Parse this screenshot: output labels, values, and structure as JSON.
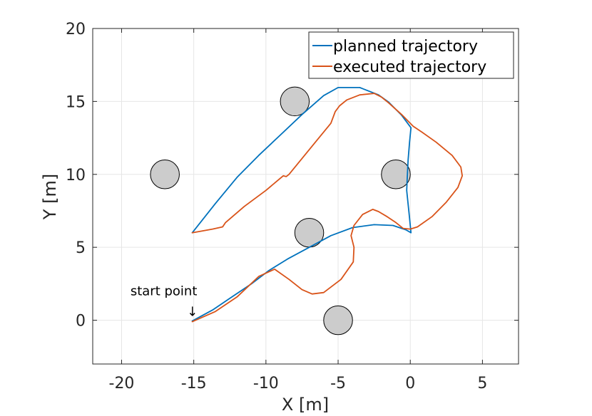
{
  "chart_data": {
    "type": "line",
    "title": "",
    "xlabel": "X [m]",
    "ylabel": "Y [m]",
    "xlim": [
      -22,
      7.5
    ],
    "ylim": [
      -3,
      20
    ],
    "xticks": [
      -20,
      -15,
      -10,
      -5,
      0,
      5
    ],
    "yticks": [
      0,
      5,
      10,
      15,
      20
    ],
    "xtick_labels": [
      "-20",
      "-15",
      "-10",
      "-5",
      "0",
      "5"
    ],
    "ytick_labels": [
      "0",
      "5",
      "10",
      "15",
      "20"
    ],
    "grid": true,
    "legend_position": "top-right",
    "colors": {
      "planned": "#0072BD",
      "executed": "#D95319",
      "obstacle_fill": "#cccccc",
      "obstacle_edge": "#000000"
    },
    "series": [
      {
        "name": "planned trajectory",
        "x": [
          -15.1,
          -13.5,
          -12,
          -10.5,
          -9,
          -7.5,
          -6,
          -5,
          -3.5,
          -2.2,
          -1.5,
          -0.6,
          0.05,
          -0.05,
          -0.15,
          -0.2,
          -0.25,
          -0.05,
          0.05,
          -0.3,
          -1.2,
          -2.5,
          -4,
          -5.5,
          -7,
          -8.5,
          -9.8,
          -11,
          -12.5,
          -13.7,
          -15.1
        ],
        "y": [
          6.0,
          8.0,
          9.8,
          11.3,
          12.7,
          14.1,
          15.4,
          15.95,
          15.95,
          15.45,
          14.95,
          14.05,
          13.2,
          12.2,
          11.0,
          10.0,
          8.9,
          7.0,
          6.0,
          6.2,
          6.5,
          6.55,
          6.35,
          5.8,
          5.0,
          4.2,
          3.4,
          2.5,
          1.5,
          0.7,
          -0.05
        ]
      },
      {
        "name": "executed trajectory",
        "x": [
          -15.1,
          -13.7,
          -13.0,
          -12.8,
          -11.5,
          -10.0,
          -8.8,
          -8.6,
          -8.4,
          -6.5,
          -5.5,
          -5.2,
          -4.9,
          -4.4,
          -3.5,
          -2.5,
          -2.0,
          -1.5,
          -0.6,
          0.2,
          0.8,
          1.8,
          2.9,
          3.5,
          3.6,
          3.3,
          2.5,
          1.5,
          0.5,
          0.0,
          -0.5,
          -1.0,
          -1.6,
          -2.2,
          -2.6,
          -3.3,
          -3.9,
          -4.1,
          -3.9,
          -3.95,
          -4.8,
          -6.0,
          -6.8,
          -7.5,
          -8.4,
          -9.4,
          -10.5,
          -12.0,
          -13.5,
          -15.1
        ],
        "y": [
          6.0,
          6.25,
          6.4,
          6.7,
          7.8,
          8.9,
          9.9,
          9.85,
          10.0,
          12.3,
          13.5,
          14.3,
          14.7,
          15.1,
          15.45,
          15.55,
          15.3,
          14.9,
          14.1,
          13.3,
          12.9,
          12.2,
          11.3,
          10.5,
          9.9,
          9.1,
          8.1,
          7.1,
          6.4,
          6.25,
          6.3,
          6.7,
          7.1,
          7.45,
          7.6,
          7.25,
          6.5,
          5.8,
          5.0,
          4.0,
          2.8,
          1.9,
          1.8,
          2.1,
          2.8,
          3.5,
          3.0,
          1.6,
          0.6,
          -0.1
        ]
      }
    ],
    "obstacles": [
      {
        "x": -17,
        "y": 10,
        "r": 1
      },
      {
        "x": -8,
        "y": 15,
        "r": 1
      },
      {
        "x": -1,
        "y": 10,
        "r": 1
      },
      {
        "x": -7,
        "y": 6,
        "r": 1
      },
      {
        "x": -5,
        "y": 0,
        "r": 1
      }
    ],
    "annotations": [
      {
        "text": "start point",
        "arrow": "↓",
        "x": -15.1,
        "y": 0
      }
    ]
  }
}
